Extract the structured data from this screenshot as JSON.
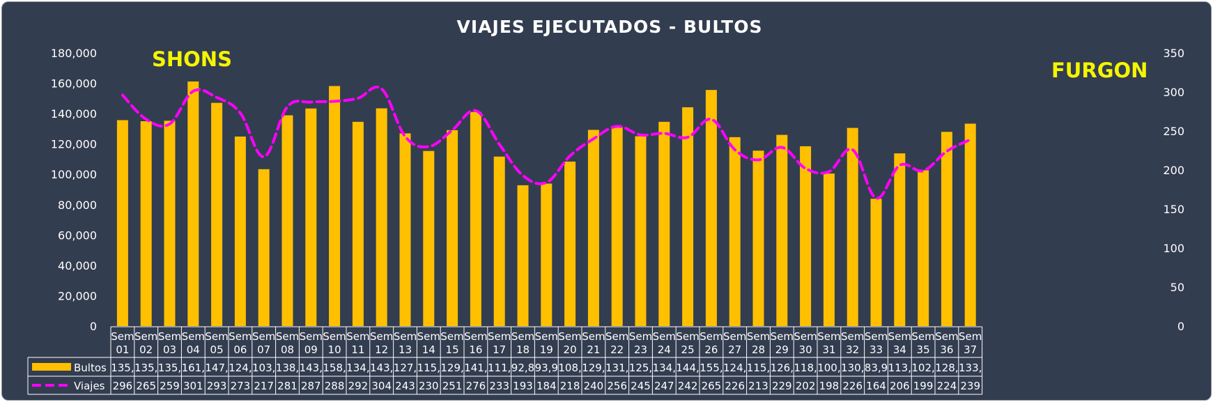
{
  "chart_data": {
    "type": "bar",
    "title": "VIAJES EJECUTADOS - BULTOS",
    "annotations": [
      "SHONS",
      "FURGON"
    ],
    "categories": [
      "Sem 01",
      "Sem 02",
      "Sem 03",
      "Sem 04",
      "Sem 05",
      "Sem 06",
      "Sem 07",
      "Sem 08",
      "Sem 09",
      "Sem 10",
      "Sem 11",
      "Sem 12",
      "Sem 13",
      "Sem 14",
      "Sem 15",
      "Sem 16",
      "Sem 17",
      "Sem 18",
      "Sem 19",
      "Sem 20",
      "Sem 21",
      "Sem 22",
      "Sem 23",
      "Sem 24",
      "Sem 25",
      "Sem 26",
      "Sem 27",
      "Sem 28",
      "Sem 29",
      "Sem 30",
      "Sem 31",
      "Sem 32",
      "Sem 33",
      "Sem 34",
      "Sem 35",
      "Sem 36",
      "Sem 37"
    ],
    "y_left": {
      "min": 0,
      "max": 180000,
      "ticks": [
        "0",
        "20,000",
        "40,000",
        "60,000",
        "80,000",
        "100,000",
        "120,000",
        "140,000",
        "160,000",
        "180,000"
      ]
    },
    "y_right": {
      "min": 0,
      "max": 350,
      "ticks": [
        "0",
        "50",
        "100",
        "150",
        "200",
        "250",
        "300",
        "350"
      ]
    },
    "colors": {
      "background": "#333d50",
      "bar": "#ffc000",
      "line": "#ff00ff"
    },
    "legend_placement": "data table below the chart",
    "series": [
      {
        "name": "Bultos",
        "type": "bar",
        "axis": "left",
        "values": [
          135700,
          135000,
          135300,
          161200,
          147100,
          124900,
          103400,
          138900,
          143400,
          158200,
          134600,
          143500,
          127000,
          115400,
          129100,
          141100,
          111700,
          92800,
          93900,
          108400,
          129300,
          131500,
          125100,
          134600,
          144200,
          155600,
          124500,
          115600,
          126000,
          118500,
          100500,
          130600,
          83900,
          113800,
          102700,
          128000,
          133400
        ],
        "table_labels": [
          "135,",
          "135,",
          "135,",
          "161,",
          "147,",
          "124,",
          "103,",
          "138,",
          "143,",
          "158,",
          "134,",
          "143,",
          "127,",
          "115,",
          "129,",
          "141,",
          "111,",
          "92,8",
          "93,9",
          "108,",
          "129,",
          "131,",
          "125,",
          "134,",
          "144,",
          "155,",
          "124,",
          "115,",
          "126,",
          "118,",
          "100,",
          "130,",
          "83,9",
          "113,",
          "102,",
          "128,",
          "133,"
        ]
      },
      {
        "name": "Viajes",
        "type": "line",
        "style": "dashed",
        "axis": "right",
        "values": [
          296,
          265,
          259,
          301,
          293,
          273,
          217,
          281,
          287,
          288,
          292,
          304,
          243,
          230,
          251,
          276,
          233,
          193,
          184,
          218,
          240,
          256,
          245,
          247,
          242,
          265,
          226,
          213,
          229,
          202,
          198,
          226,
          164,
          206,
          199,
          224,
          239
        ],
        "table_labels": [
          "296",
          "265",
          "259",
          "301",
          "293",
          "273",
          "217",
          "281",
          "287",
          "288",
          "292",
          "304",
          "243",
          "230",
          "251",
          "276",
          "233",
          "193",
          "184",
          "218",
          "240",
          "256",
          "245",
          "247",
          "242",
          "265",
          "226",
          "213",
          "229",
          "202",
          "198",
          "226",
          "164",
          "206",
          "199",
          "224",
          "239"
        ]
      }
    ]
  }
}
